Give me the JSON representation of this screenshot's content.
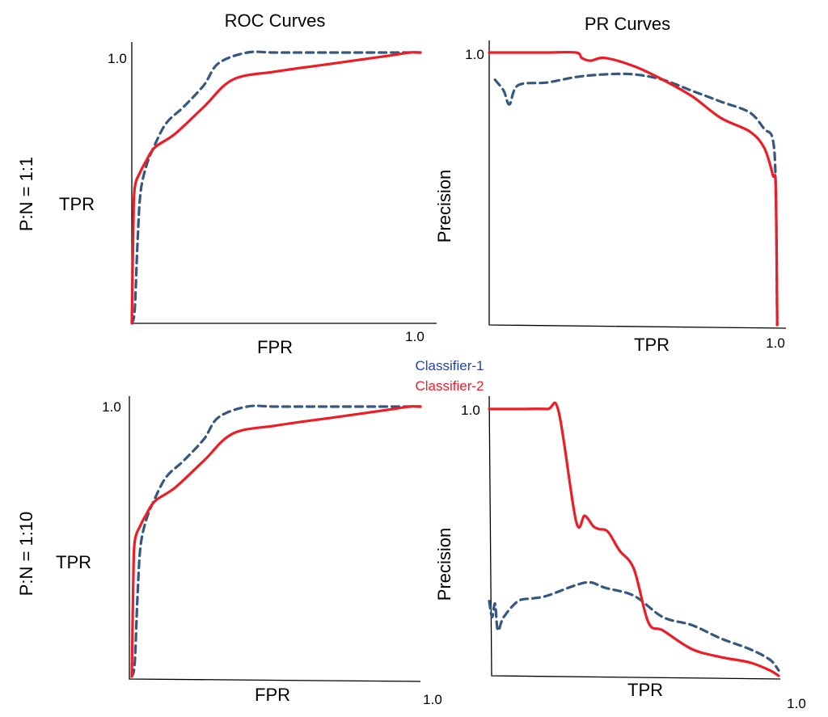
{
  "colors": {
    "classifier_1": "#34587f",
    "classifier_2": "#ee1c25",
    "legend_classifier_1": "#1f45b8",
    "legend_classifier_2": "#ee1c25",
    "axis": "#000000"
  },
  "column_titles": [
    "ROC Curves",
    "PR Curves"
  ],
  "row_labels": [
    "P:N = 1:1",
    "P:N = 1:10"
  ],
  "legend": [
    {
      "label": "Classifier-1",
      "style": "dashed"
    },
    {
      "label": "Classifier-2",
      "style": "solid"
    }
  ],
  "chart_data": [
    {
      "type": "line",
      "title": "ROC Curves",
      "row": "P:N = 1:1",
      "xlabel": "FPR",
      "ylabel": "TPR",
      "xlim": [
        0,
        1
      ],
      "ylim": [
        0,
        1
      ],
      "x_tick_label": "1.0",
      "y_tick_label": "1.0",
      "series": [
        {
          "name": "Classifier-1",
          "style": "dashed",
          "x": [
            0,
            0.01,
            0.02,
            0.03,
            0.05,
            0.08,
            0.12,
            0.18,
            0.25,
            0.3,
            0.4,
            0.5,
            0.7,
            0.9,
            0.97,
            1.0
          ],
          "y": [
            0,
            0.05,
            0.3,
            0.48,
            0.58,
            0.66,
            0.74,
            0.8,
            0.88,
            0.96,
            1.0,
            1.0,
            1.0,
            1.0,
            1.0,
            1.0
          ]
        },
        {
          "name": "Classifier-2",
          "style": "solid",
          "x": [
            0,
            0.005,
            0.01,
            0.03,
            0.05,
            0.08,
            0.15,
            0.25,
            0.35,
            0.5,
            0.7,
            0.9,
            0.96,
            1.0
          ],
          "y": [
            0,
            0.35,
            0.5,
            0.56,
            0.6,
            0.65,
            0.7,
            0.8,
            0.9,
            0.93,
            0.96,
            0.99,
            1.0,
            1.0
          ]
        }
      ]
    },
    {
      "type": "line",
      "title": "PR Curves",
      "row": "P:N = 1:1",
      "xlabel": "TPR",
      "ylabel": "Precision",
      "xlim": [
        0,
        1
      ],
      "ylim": [
        0,
        1
      ],
      "x_tick_label": "1.0",
      "y_tick_label": "1.0",
      "series": [
        {
          "name": "Classifier-1",
          "style": "dashed",
          "x": [
            0.02,
            0.05,
            0.07,
            0.1,
            0.2,
            0.3,
            0.4,
            0.5,
            0.6,
            0.7,
            0.8,
            0.9,
            0.95,
            0.98,
            0.99,
            0.995
          ],
          "y": [
            0.9,
            0.86,
            0.81,
            0.88,
            0.89,
            0.91,
            0.92,
            0.92,
            0.9,
            0.86,
            0.82,
            0.78,
            0.72,
            0.68,
            0.5,
            0.0
          ]
        },
        {
          "name": "Classifier-2",
          "style": "solid",
          "x": [
            0.0,
            0.1,
            0.2,
            0.3,
            0.32,
            0.35,
            0.4,
            0.5,
            0.6,
            0.7,
            0.8,
            0.9,
            0.95,
            0.98,
            0.99,
            0.995
          ],
          "y": [
            1.0,
            1.0,
            1.0,
            1.0,
            0.98,
            0.97,
            0.98,
            0.95,
            0.9,
            0.84,
            0.76,
            0.71,
            0.65,
            0.55,
            0.5,
            0.0
          ]
        }
      ]
    },
    {
      "type": "line",
      "title": "ROC Curves",
      "row": "P:N = 1:10",
      "xlabel": "FPR",
      "ylabel": "TPR",
      "xlim": [
        0,
        1
      ],
      "ylim": [
        0,
        1
      ],
      "x_tick_label": "1.0",
      "y_tick_label": "1.0",
      "series": [
        {
          "name": "Classifier-1",
          "style": "dashed",
          "x": [
            0,
            0.01,
            0.02,
            0.03,
            0.05,
            0.08,
            0.12,
            0.18,
            0.25,
            0.3,
            0.4,
            0.5,
            0.7,
            0.9,
            0.97,
            1.0
          ],
          "y": [
            0,
            0.05,
            0.3,
            0.48,
            0.58,
            0.66,
            0.74,
            0.8,
            0.88,
            0.96,
            1.0,
            1.0,
            1.0,
            1.0,
            1.0,
            1.0
          ]
        },
        {
          "name": "Classifier-2",
          "style": "solid",
          "x": [
            0,
            0.005,
            0.01,
            0.03,
            0.05,
            0.08,
            0.15,
            0.25,
            0.35,
            0.5,
            0.7,
            0.9,
            0.96,
            1.0
          ],
          "y": [
            0,
            0.35,
            0.5,
            0.56,
            0.6,
            0.65,
            0.7,
            0.8,
            0.9,
            0.93,
            0.96,
            0.99,
            1.0,
            1.0
          ]
        }
      ]
    },
    {
      "type": "line",
      "title": "PR Curves",
      "row": "P:N = 1:10",
      "xlabel": "TPR",
      "ylabel": "Precision",
      "xlim": [
        0,
        1
      ],
      "ylim": [
        0,
        1
      ],
      "x_tick_label": "1.0",
      "y_tick_label": "1.0",
      "series": [
        {
          "name": "Classifier-1",
          "style": "dashed",
          "x": [
            0.0,
            0.01,
            0.02,
            0.03,
            0.05,
            0.1,
            0.15,
            0.2,
            0.3,
            0.35,
            0.4,
            0.5,
            0.6,
            0.7,
            0.8,
            0.9,
            0.97,
            1.0
          ],
          "y": [
            0.28,
            0.22,
            0.27,
            0.17,
            0.22,
            0.28,
            0.29,
            0.3,
            0.34,
            0.35,
            0.33,
            0.3,
            0.22,
            0.19,
            0.14,
            0.1,
            0.06,
            0.02
          ]
        },
        {
          "name": "Classifier-2",
          "style": "solid",
          "x": [
            0.0,
            0.1,
            0.2,
            0.24,
            0.3,
            0.33,
            0.36,
            0.38,
            0.41,
            0.45,
            0.5,
            0.55,
            0.6,
            0.7,
            0.8,
            0.9,
            0.97,
            1.0
          ],
          "y": [
            1.0,
            1.0,
            1.0,
            0.99,
            0.58,
            0.6,
            0.56,
            0.55,
            0.54,
            0.47,
            0.4,
            0.2,
            0.17,
            0.1,
            0.07,
            0.05,
            0.02,
            0.0
          ]
        }
      ]
    }
  ]
}
